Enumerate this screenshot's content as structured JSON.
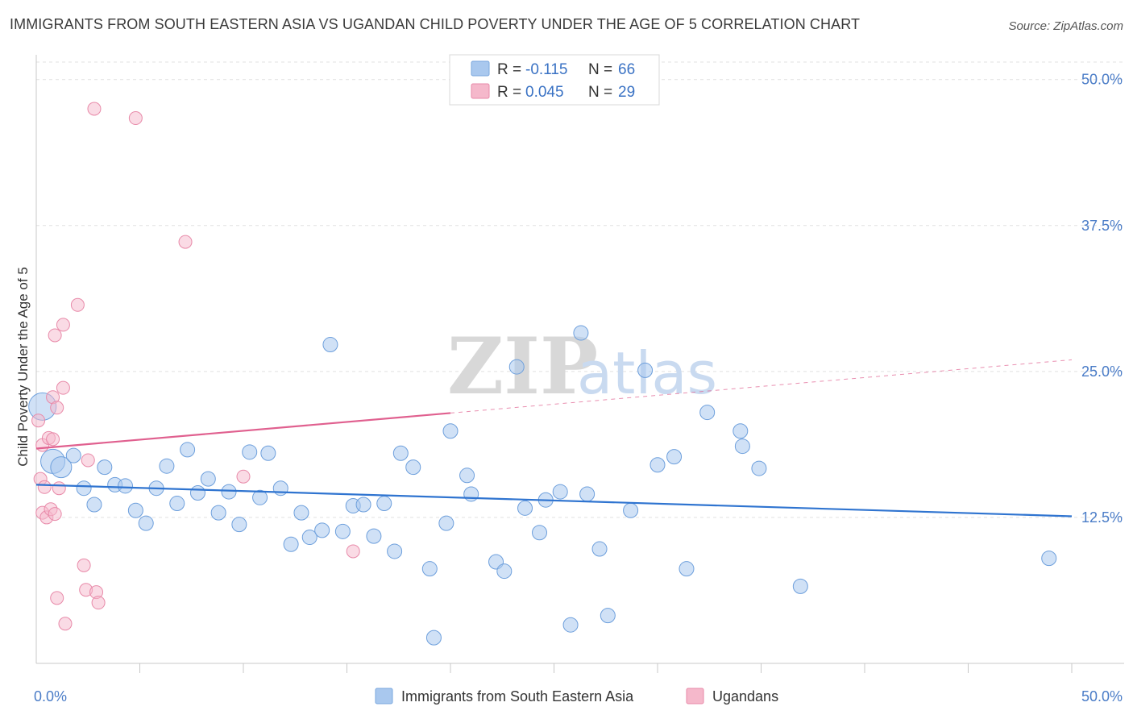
{
  "header": {
    "title": "IMMIGRANTS FROM SOUTH EASTERN ASIA VS UGANDAN CHILD POVERTY UNDER THE AGE OF 5 CORRELATION CHART",
    "source": "Source: ZipAtlas.com"
  },
  "watermark": {
    "zip": "ZIP",
    "atlas": "atlas"
  },
  "legend_top": [
    {
      "r_label": "R = ",
      "r_value": "-0.115",
      "n_label": "N = ",
      "n_value": "66"
    },
    {
      "r_label": "R = ",
      "r_value": "0.045",
      "n_label": "N = ",
      "n_value": "29"
    }
  ],
  "chart_data": {
    "type": "scatter",
    "title": "IMMIGRANTS FROM SOUTH EASTERN ASIA VS UGANDAN CHILD POVERTY UNDER THE AGE OF 5 CORRELATION CHART",
    "xlabel": "",
    "ylabel": "Child Poverty Under the Age of 5",
    "xlim": [
      0,
      50
    ],
    "ylim": [
      0,
      51.5
    ],
    "x_tick_labels": [
      "0.0%",
      "50.0%"
    ],
    "y_ticks": [
      12.5,
      25.0,
      37.5,
      50.0
    ],
    "y_tick_labels": [
      "12.5%",
      "25.0%",
      "37.5%",
      "50.0%"
    ],
    "grid": true,
    "legend_position": "top-center",
    "colors": {
      "blue": "#a9c8ee",
      "blue_line": "#2f74d0",
      "pink": "#f5b8cb",
      "pink_line": "#e0608f"
    },
    "series": [
      {
        "name": "Immigrants from South Eastern Asia",
        "color": "#a9c8ee",
        "trend": {
          "x0": 0,
          "y0": 15.3,
          "x1": 50,
          "y1": 12.6
        },
        "points": [
          [
            0.3,
            22.0
          ],
          [
            0.8,
            17.3
          ],
          [
            1.2,
            16.8
          ],
          [
            1.8,
            17.8
          ],
          [
            2.3,
            15.0
          ],
          [
            2.8,
            13.6
          ],
          [
            3.3,
            16.8
          ],
          [
            3.8,
            15.3
          ],
          [
            4.3,
            15.2
          ],
          [
            4.8,
            13.1
          ],
          [
            5.3,
            12.0
          ],
          [
            5.8,
            15.0
          ],
          [
            6.3,
            16.9
          ],
          [
            6.8,
            13.7
          ],
          [
            7.3,
            18.3
          ],
          [
            7.8,
            14.6
          ],
          [
            8.3,
            15.8
          ],
          [
            8.8,
            12.9
          ],
          [
            9.3,
            14.7
          ],
          [
            9.8,
            11.9
          ],
          [
            10.3,
            18.1
          ],
          [
            10.8,
            14.2
          ],
          [
            11.2,
            18.0
          ],
          [
            11.8,
            15.0
          ],
          [
            12.3,
            10.2
          ],
          [
            12.8,
            12.9
          ],
          [
            13.2,
            10.8
          ],
          [
            13.8,
            11.4
          ],
          [
            14.2,
            27.3
          ],
          [
            14.8,
            11.3
          ],
          [
            15.3,
            13.5
          ],
          [
            15.8,
            13.6
          ],
          [
            16.3,
            10.9
          ],
          [
            16.8,
            13.7
          ],
          [
            17.3,
            9.6
          ],
          [
            17.6,
            18.0
          ],
          [
            18.2,
            16.8
          ],
          [
            19.0,
            8.1
          ],
          [
            19.2,
            2.2
          ],
          [
            19.8,
            12.0
          ],
          [
            20.0,
            19.9
          ],
          [
            20.8,
            16.1
          ],
          [
            21.0,
            14.5
          ],
          [
            22.2,
            8.7
          ],
          [
            22.6,
            7.9
          ],
          [
            23.2,
            25.4
          ],
          [
            23.6,
            13.3
          ],
          [
            24.3,
            11.2
          ],
          [
            24.6,
            14.0
          ],
          [
            25.3,
            14.7
          ],
          [
            25.8,
            3.3
          ],
          [
            26.3,
            28.3
          ],
          [
            26.6,
            14.5
          ],
          [
            27.2,
            9.8
          ],
          [
            27.6,
            4.1
          ],
          [
            28.7,
            13.1
          ],
          [
            29.4,
            25.1
          ],
          [
            30.0,
            17.0
          ],
          [
            30.8,
            17.7
          ],
          [
            31.4,
            8.1
          ],
          [
            32.4,
            21.5
          ],
          [
            34.0,
            19.9
          ],
          [
            34.1,
            18.6
          ],
          [
            34.9,
            16.7
          ],
          [
            36.9,
            6.6
          ],
          [
            48.9,
            9.0
          ]
        ]
      },
      {
        "name": "Ugandans",
        "color": "#f5b8cb",
        "trend": {
          "x0": 0,
          "y0": 18.4,
          "x1": 50,
          "y1": 26.0,
          "solid_until_x": 20.0
        },
        "points": [
          [
            0.1,
            20.8
          ],
          [
            0.2,
            15.8
          ],
          [
            0.3,
            12.9
          ],
          [
            0.3,
            18.7
          ],
          [
            0.4,
            15.1
          ],
          [
            0.5,
            12.5
          ],
          [
            0.6,
            19.3
          ],
          [
            0.7,
            13.2
          ],
          [
            0.8,
            19.2
          ],
          [
            0.8,
            22.8
          ],
          [
            0.9,
            12.8
          ],
          [
            0.9,
            28.1
          ],
          [
            1.0,
            5.6
          ],
          [
            1.0,
            21.9
          ],
          [
            1.1,
            15.0
          ],
          [
            1.3,
            29.0
          ],
          [
            1.3,
            23.6
          ],
          [
            1.4,
            3.4
          ],
          [
            2.0,
            30.7
          ],
          [
            2.3,
            8.4
          ],
          [
            2.4,
            6.3
          ],
          [
            2.5,
            17.4
          ],
          [
            2.8,
            47.5
          ],
          [
            2.9,
            6.1
          ],
          [
            3.0,
            5.2
          ],
          [
            4.8,
            46.7
          ],
          [
            7.2,
            36.1
          ],
          [
            10.0,
            16.0
          ],
          [
            15.3,
            9.6
          ]
        ]
      }
    ]
  },
  "legend_bottom": [
    {
      "label": "Immigrants from South Eastern Asia"
    },
    {
      "label": "Ugandans"
    }
  ]
}
